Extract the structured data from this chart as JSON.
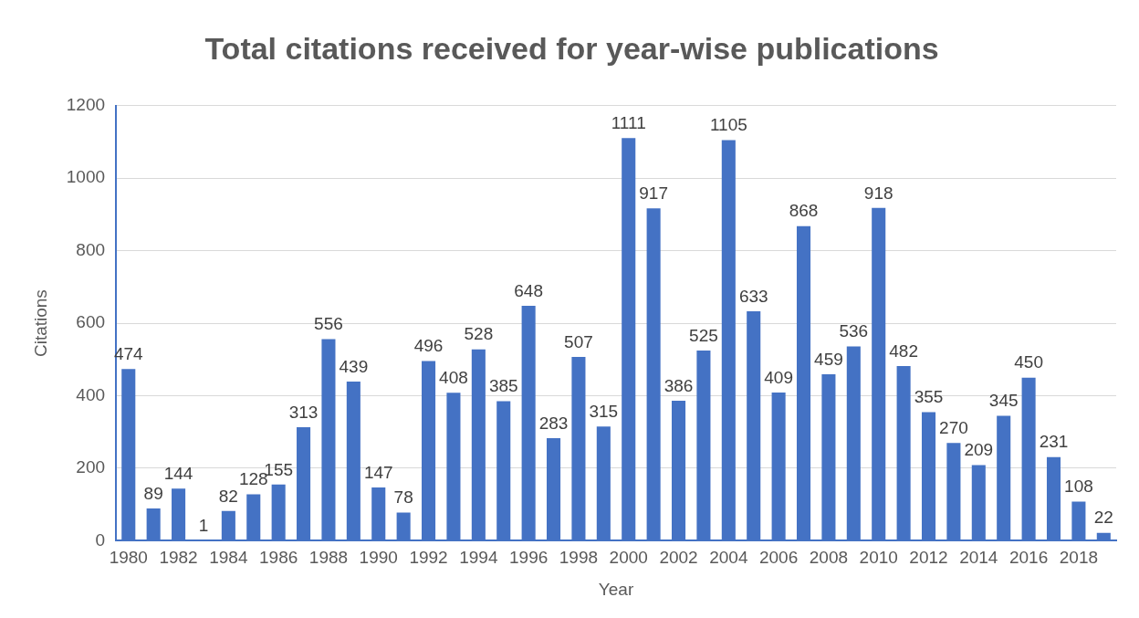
{
  "chart_data": {
    "type": "bar",
    "title": "Total citations received for year-wise publications",
    "xlabel": "Year",
    "ylabel": "Citations",
    "categories": [
      "1980",
      null,
      "1982",
      null,
      "1984",
      null,
      "1986",
      null,
      "1988",
      null,
      "1990",
      null,
      "1992",
      null,
      "1994",
      null,
      "1996",
      null,
      "1998",
      null,
      "2000",
      null,
      "2002",
      null,
      "2004",
      null,
      "2006",
      null,
      "2008",
      null,
      "2010",
      null,
      "2012",
      null,
      "2014",
      null,
      "2016",
      null,
      "2018",
      null
    ],
    "values": [
      474,
      89,
      144,
      1,
      82,
      128,
      155,
      313,
      556,
      439,
      147,
      78,
      496,
      408,
      528,
      385,
      648,
      283,
      507,
      315,
      1111,
      917,
      386,
      525,
      1105,
      633,
      409,
      868,
      459,
      536,
      918,
      482,
      355,
      270,
      209,
      345,
      450,
      231,
      108,
      22
    ],
    "color": "#4472c4",
    "ylim": [
      0,
      1200
    ],
    "yticks": [
      0,
      200,
      400,
      600,
      800,
      1000,
      1200
    ],
    "grid": "y",
    "data_labels": true
  }
}
